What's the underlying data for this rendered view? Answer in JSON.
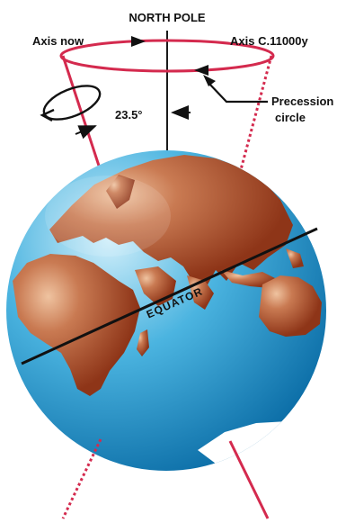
{
  "labels": {
    "north_pole": "NORTH POLE",
    "axis_now": "Axis now",
    "axis_future": "Axis C.11000y",
    "precession_line1": "Precession",
    "precession_line2": "circle",
    "tilt_angle": "23.5°",
    "equator": "EQUATOR"
  },
  "colors": {
    "axis_line": "#d42a4e",
    "pole_line": "#1a1a1a",
    "ocean_light": "#cfeefa",
    "ocean_mid": "#4bb4e0",
    "ocean_dark": "#0d6fa8",
    "land_light": "#e9b48c",
    "land_dark": "#9c3f1e",
    "ice": "#ffffff",
    "equator": "#111111"
  },
  "icons": [
    "rotation-arrow-icon",
    "precession-arrow-icon"
  ]
}
